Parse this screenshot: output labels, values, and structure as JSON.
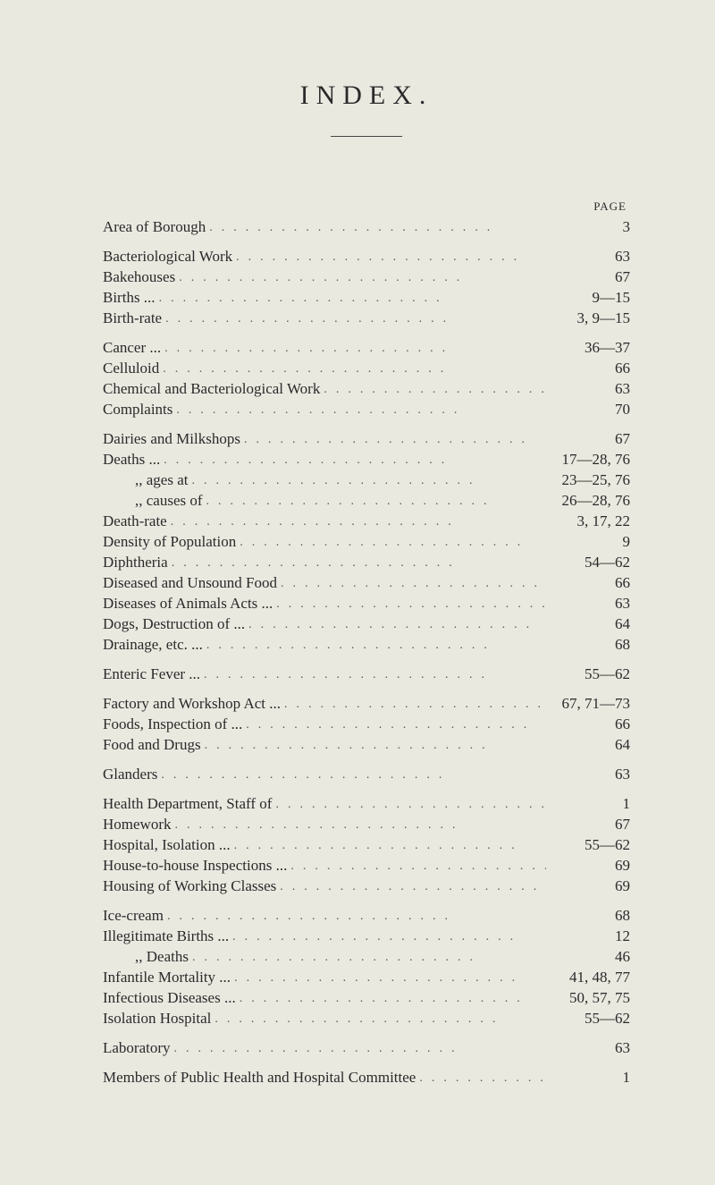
{
  "title": "INDEX.",
  "page_label": "PAGE",
  "background_color": "#eae9e0",
  "text_color": "#2a2a2a",
  "dot_color": "#555555",
  "font_family": "Times New Roman",
  "title_fontsize": 30,
  "body_fontsize": 17,
  "groups": [
    [
      {
        "label": "Area of Borough",
        "page": "3"
      }
    ],
    [
      {
        "label": "Bacteriological Work",
        "page": "63"
      },
      {
        "label": "Bakehouses",
        "page": "67"
      },
      {
        "label": "Births ...",
        "page": "9—15"
      },
      {
        "label": "Birth-rate",
        "page": "3, 9—15"
      }
    ],
    [
      {
        "label": "Cancer ...",
        "page": "36—37"
      },
      {
        "label": "Celluloid",
        "page": "66"
      },
      {
        "label": "Chemical and Bacteriological Work",
        "page": "63"
      },
      {
        "label": "Complaints",
        "page": "70"
      }
    ],
    [
      {
        "label": "Dairies and Milkshops",
        "page": "67"
      },
      {
        "label": "Deaths ...",
        "page": "17—28, 76"
      },
      {
        "label": ",,    ages at",
        "page": "23—25, 76",
        "sub": true
      },
      {
        "label": ",,    causes of",
        "page": "26—28, 76",
        "sub": true
      },
      {
        "label": "Death-rate",
        "page": "3, 17, 22"
      },
      {
        "label": "Density of Population",
        "page": "9"
      },
      {
        "label": "Diphtheria",
        "page": "54—62"
      },
      {
        "label": "Diseased and Unsound Food",
        "page": "66"
      },
      {
        "label": "Diseases of Animals Acts ...",
        "page": "63"
      },
      {
        "label": "Dogs, Destruction of ...",
        "page": "64"
      },
      {
        "label": "Drainage, etc. ...",
        "page": "68"
      }
    ],
    [
      {
        "label": "Enteric Fever ...",
        "page": "55—62"
      }
    ],
    [
      {
        "label": "Factory and Workshop Act ...",
        "page": "67, 71—73"
      },
      {
        "label": "Foods, Inspection of ...",
        "page": "66"
      },
      {
        "label": "Food and Drugs",
        "page": "64"
      }
    ],
    [
      {
        "label": "Glanders",
        "page": "63"
      }
    ],
    [
      {
        "label": "Health Department, Staff of",
        "page": "1"
      },
      {
        "label": "Homework",
        "page": "67"
      },
      {
        "label": "Hospital, Isolation ...",
        "page": "55—62"
      },
      {
        "label": "House-to-house Inspections ...",
        "page": "69"
      },
      {
        "label": "Housing of Working Classes",
        "page": "69"
      }
    ],
    [
      {
        "label": "Ice-cream",
        "page": "68"
      },
      {
        "label": "Illegitimate Births ...",
        "page": "12"
      },
      {
        "label": ",,          Deaths",
        "page": "46",
        "sub": true
      },
      {
        "label": "Infantile Mortality ...",
        "page": "41, 48, 77"
      },
      {
        "label": "Infectious Diseases ...",
        "page": "50, 57, 75"
      },
      {
        "label": "Isolation Hospital",
        "page": "55—62"
      }
    ],
    [
      {
        "label": "Laboratory",
        "page": "63"
      }
    ],
    [
      {
        "label": "Members of Public Health and Hospital Committee",
        "page": "1"
      }
    ]
  ]
}
